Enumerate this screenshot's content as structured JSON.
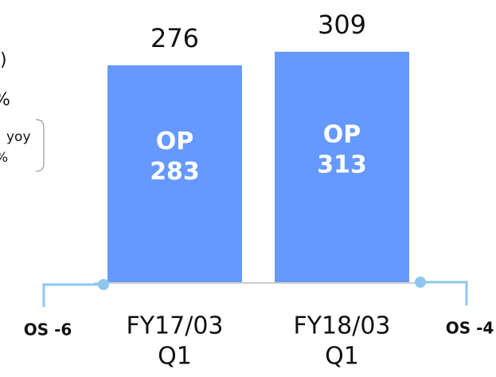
{
  "chart_data": {
    "type": "bar",
    "categories": [
      [
        "FY17/03",
        "Q1"
      ],
      [
        "FY18/03",
        "Q1"
      ]
    ],
    "values": [
      276,
      309
    ],
    "color": "#6699ff",
    "ylim": [
      -254,
      435
    ],
    "inner_label": "OP",
    "inner_values": [
      283,
      313
    ],
    "adjustments": [
      "OS -6",
      "OS -4"
    ],
    "side_texts": [
      ")",
      "%",
      "yoy",
      "%"
    ]
  }
}
